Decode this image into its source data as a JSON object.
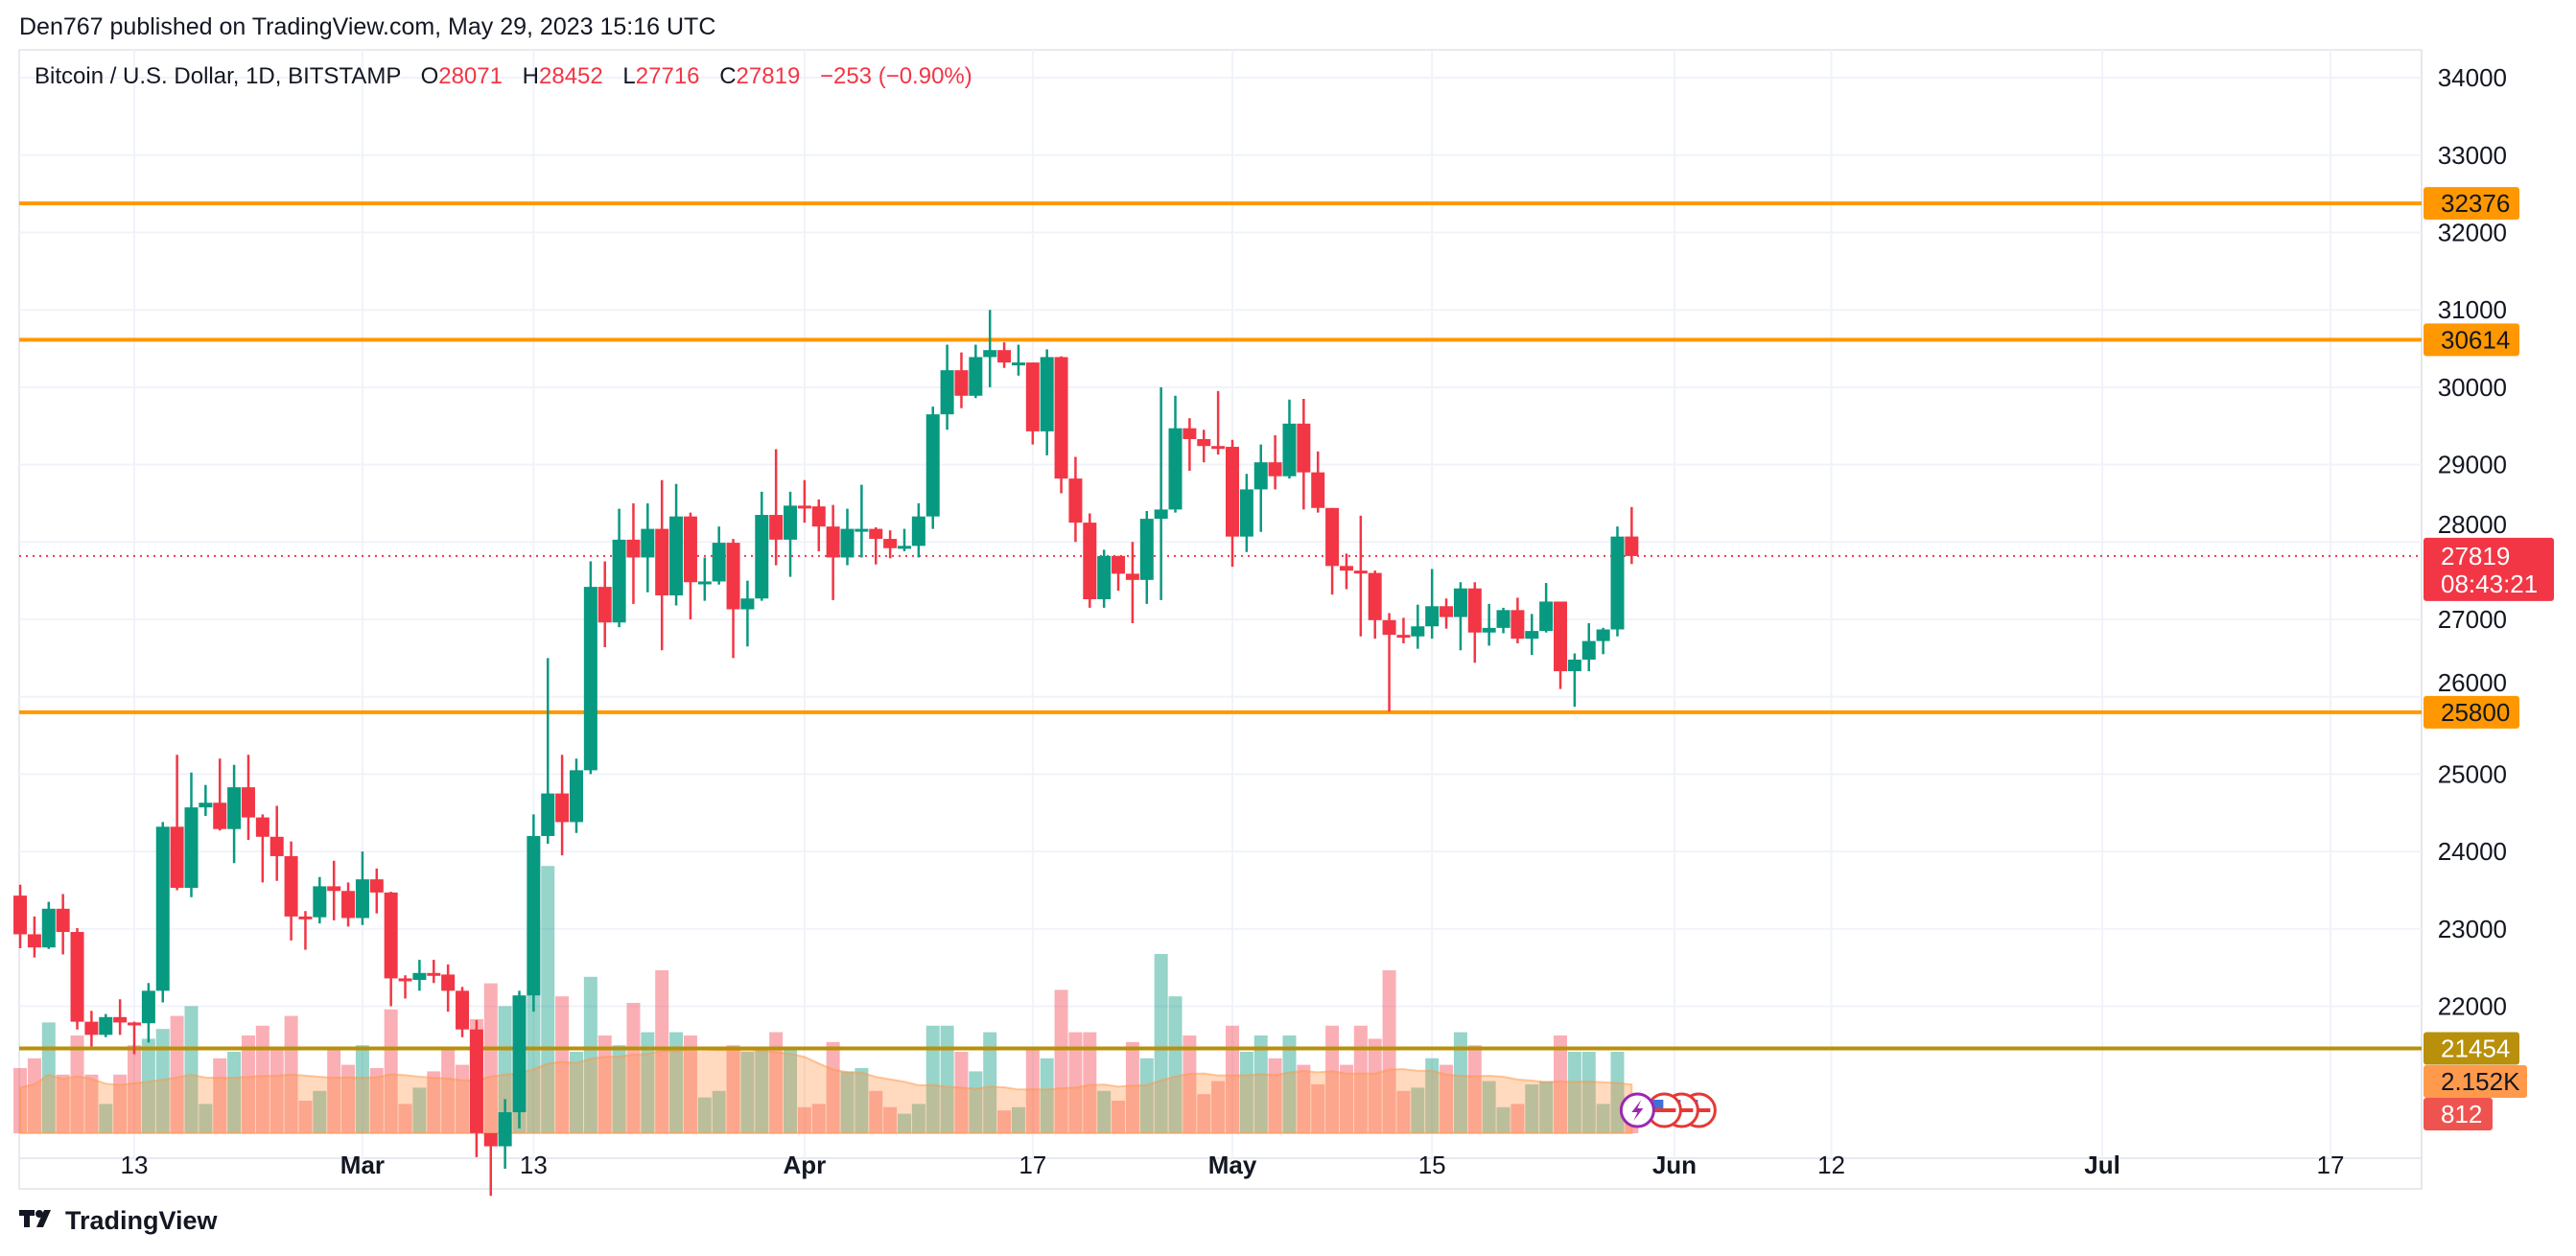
{
  "header": {
    "published": "Den767 published on TradingView.com, May 29, 2023 15:16 UTC"
  },
  "legend": {
    "symbol": "Bitcoin / U.S. Dollar, 1D, BITSTAMP",
    "o_label": "O",
    "o": "28071",
    "h_label": "H",
    "h": "28452",
    "l_label": "L",
    "l": "27716",
    "c_label": "C",
    "c": "27819",
    "change": "−253 (−0.90%)"
  },
  "footer": {
    "brand": "TradingView",
    "logo_icon": "tradingview-logo-icon"
  },
  "colors": {
    "up": "#089981",
    "down": "#f23645",
    "level_line": "#ff9800",
    "volume_level_line": "#b8900b",
    "volume_ma": "#ff9a4d",
    "last_price": "#f23645"
  },
  "chart_data": {
    "type": "candlestick",
    "title": "",
    "ylim": [
      20300,
      34500
    ],
    "grid": true,
    "yticks": [
      "22000",
      "23000",
      "24000",
      "25000",
      "26000",
      "27000",
      "28000",
      "29000",
      "30000",
      "31000",
      "32000",
      "33000",
      "34000"
    ],
    "xticks": [
      {
        "label": "13",
        "date": "2023-02-13"
      },
      {
        "label": "Mar",
        "date": "2023-03-01"
      },
      {
        "label": "13",
        "date": "2023-03-13"
      },
      {
        "label": "Apr",
        "date": "2023-04-01"
      },
      {
        "label": "17",
        "date": "2023-04-17"
      },
      {
        "label": "May",
        "date": "2023-05-01"
      },
      {
        "label": "15",
        "date": "2023-05-15"
      },
      {
        "label": "Jun",
        "date": "2023-06-01"
      },
      {
        "label": "12",
        "date": "2023-06-12"
      },
      {
        "label": "Jul",
        "date": "2023-07-01"
      },
      {
        "label": "17",
        "date": "2023-07-17"
      }
    ],
    "horizontal_levels": [
      {
        "value": 32376,
        "label": "32376",
        "kind": "level"
      },
      {
        "value": 30614,
        "label": "30614",
        "kind": "level"
      },
      {
        "value": 25800,
        "label": "25800",
        "kind": "level"
      },
      {
        "value": 21454,
        "label": "21454",
        "kind": "volume-level"
      }
    ],
    "last_price": {
      "value": 27819,
      "label": "27819",
      "countdown": "08:43:21"
    },
    "volume_labels": {
      "ma": "2.152K",
      "current": "812"
    },
    "candle_fields": [
      "date",
      "open",
      "high",
      "low",
      "close",
      "volume"
    ],
    "candles": [
      [
        "2023-02-05",
        23430,
        23570,
        22750,
        22930,
        2000
      ],
      [
        "2023-02-06",
        22930,
        23160,
        22630,
        22760,
        2300
      ],
      [
        "2023-02-07",
        22760,
        23350,
        22740,
        23260,
        3400
      ],
      [
        "2023-02-08",
        23260,
        23450,
        22670,
        22960,
        1800
      ],
      [
        "2023-02-09",
        22960,
        23010,
        21700,
        21800,
        3000
      ],
      [
        "2023-02-10",
        21800,
        21940,
        21480,
        21630,
        1800
      ],
      [
        "2023-02-11",
        21630,
        21900,
        21600,
        21860,
        900
      ],
      [
        "2023-02-12",
        21860,
        22090,
        21630,
        21790,
        1800
      ],
      [
        "2023-02-13",
        21790,
        21800,
        21380,
        21780,
        2700
      ],
      [
        "2023-02-14",
        21780,
        22300,
        21530,
        22200,
        2900
      ],
      [
        "2023-02-15",
        22200,
        24380,
        22050,
        24320,
        3200
      ],
      [
        "2023-02-16",
        24320,
        25250,
        23500,
        23530,
        3600
      ],
      [
        "2023-02-17",
        23530,
        25020,
        23410,
        24570,
        3900
      ],
      [
        "2023-02-18",
        24570,
        24860,
        24460,
        24630,
        900
      ],
      [
        "2023-02-19",
        24630,
        25200,
        24270,
        24290,
        2300
      ],
      [
        "2023-02-20",
        24290,
        25120,
        23850,
        24830,
        2500
      ],
      [
        "2023-02-21",
        24830,
        25250,
        24150,
        24440,
        3000
      ],
      [
        "2023-02-22",
        24440,
        24480,
        23600,
        24190,
        3300
      ],
      [
        "2023-02-23",
        24190,
        24590,
        23620,
        23940,
        2600
      ],
      [
        "2023-02-24",
        23940,
        24130,
        22850,
        23160,
        3600
      ],
      [
        "2023-02-25",
        23160,
        23230,
        22730,
        23150,
        1000
      ],
      [
        "2023-02-26",
        23150,
        23670,
        23070,
        23550,
        1300
      ],
      [
        "2023-02-27",
        23550,
        23880,
        23110,
        23490,
        2600
      ],
      [
        "2023-02-28",
        23490,
        23600,
        23030,
        23140,
        2100
      ],
      [
        "2023-03-01",
        23140,
        24000,
        23050,
        23640,
        2700
      ],
      [
        "2023-03-02",
        23640,
        23780,
        23200,
        23470,
        2000
      ],
      [
        "2023-03-03",
        23470,
        23480,
        22000,
        22360,
        3800
      ],
      [
        "2023-03-04",
        22360,
        22400,
        22100,
        22340,
        900
      ],
      [
        "2023-03-05",
        22340,
        22600,
        22200,
        22430,
        1400
      ],
      [
        "2023-03-06",
        22430,
        22600,
        22300,
        22410,
        1900
      ],
      [
        "2023-03-07",
        22410,
        22540,
        21930,
        22200,
        2600
      ],
      [
        "2023-03-08",
        22200,
        22250,
        21600,
        21700,
        2100
      ],
      [
        "2023-03-09",
        21700,
        21820,
        20050,
        20360,
        3500
      ],
      [
        "2023-03-10",
        20360,
        20360,
        19550,
        20190,
        4600
      ],
      [
        "2023-03-11",
        20190,
        20800,
        19900,
        20630,
        3900
      ],
      [
        "2023-03-12",
        20630,
        22200,
        20420,
        22140,
        3600
      ],
      [
        "2023-03-13",
        22140,
        24480,
        21930,
        24200,
        6600
      ],
      [
        "2023-03-14",
        24200,
        26500,
        24100,
        24750,
        8200
      ],
      [
        "2023-03-15",
        24750,
        25250,
        23950,
        24380,
        4200
      ],
      [
        "2023-03-16",
        24380,
        25200,
        24240,
        25050,
        2500
      ],
      [
        "2023-03-17",
        25050,
        27750,
        25000,
        27420,
        4800
      ],
      [
        "2023-03-18",
        27420,
        27750,
        26640,
        26960,
        3000
      ],
      [
        "2023-03-19",
        26960,
        28430,
        26900,
        28030,
        2700
      ],
      [
        "2023-03-20",
        28030,
        28500,
        27200,
        27800,
        4000
      ],
      [
        "2023-03-21",
        27800,
        28500,
        27350,
        28170,
        3100
      ],
      [
        "2023-03-22",
        28170,
        28800,
        26600,
        27310,
        5000
      ],
      [
        "2023-03-23",
        27310,
        28750,
        27180,
        28330,
        3100
      ],
      [
        "2023-03-24",
        28330,
        28380,
        27000,
        27480,
        3000
      ],
      [
        "2023-03-25",
        27480,
        27800,
        27240,
        27490,
        1100
      ],
      [
        "2023-03-26",
        27490,
        28200,
        27450,
        27990,
        1300
      ],
      [
        "2023-03-27",
        27990,
        28040,
        26500,
        27130,
        2700
      ],
      [
        "2023-03-28",
        27130,
        27500,
        26650,
        27270,
        2500
      ],
      [
        "2023-03-29",
        27270,
        28650,
        27240,
        28350,
        2600
      ],
      [
        "2023-03-30",
        28350,
        29200,
        27700,
        28030,
        3100
      ],
      [
        "2023-03-31",
        28030,
        28650,
        27550,
        28470,
        2600
      ],
      [
        "2023-04-01",
        28470,
        28800,
        28250,
        28460,
        800
      ],
      [
        "2023-04-02",
        28460,
        28550,
        27880,
        28200,
        900
      ],
      [
        "2023-04-03",
        28200,
        28480,
        27250,
        27800,
        2800
      ],
      [
        "2023-04-04",
        27800,
        28430,
        27700,
        28170,
        1900
      ],
      [
        "2023-04-05",
        28170,
        28740,
        27800,
        28170,
        2000
      ],
      [
        "2023-04-06",
        28170,
        28190,
        27710,
        28040,
        1300
      ],
      [
        "2023-04-07",
        28040,
        28150,
        27790,
        27920,
        800
      ],
      [
        "2023-04-08",
        27920,
        28170,
        27880,
        27950,
        600
      ],
      [
        "2023-04-09",
        27950,
        28500,
        27800,
        28330,
        900
      ],
      [
        "2023-04-10",
        28330,
        29750,
        28170,
        29650,
        3300
      ],
      [
        "2023-04-11",
        29650,
        30550,
        29450,
        30220,
        3300
      ],
      [
        "2023-04-12",
        30220,
        30450,
        29730,
        29890,
        2500
      ],
      [
        "2023-04-13",
        29890,
        30550,
        29860,
        30390,
        1900
      ],
      [
        "2023-04-14",
        30390,
        31000,
        30000,
        30480,
        3100
      ],
      [
        "2023-04-15",
        30480,
        30580,
        30250,
        30320,
        700
      ],
      [
        "2023-04-16",
        30320,
        30550,
        30150,
        30320,
        800
      ],
      [
        "2023-04-17",
        30320,
        30320,
        29260,
        29430,
        2600
      ],
      [
        "2023-04-18",
        29430,
        30490,
        29120,
        30390,
        2300
      ],
      [
        "2023-04-19",
        30390,
        30400,
        28630,
        28820,
        4400
      ],
      [
        "2023-04-20",
        28820,
        29100,
        28000,
        28250,
        3100
      ],
      [
        "2023-04-21",
        28250,
        28370,
        27150,
        27260,
        3100
      ],
      [
        "2023-04-22",
        27260,
        27900,
        27150,
        27820,
        1300
      ],
      [
        "2023-04-23",
        27820,
        27820,
        27370,
        27590,
        1000
      ],
      [
        "2023-04-24",
        27590,
        28000,
        26950,
        27510,
        2800
      ],
      [
        "2023-04-25",
        27510,
        28400,
        27200,
        28300,
        2300
      ],
      [
        "2023-04-26",
        28300,
        30000,
        27250,
        28420,
        5500
      ],
      [
        "2023-04-27",
        28420,
        29890,
        28380,
        29470,
        4200
      ],
      [
        "2023-04-28",
        29470,
        29600,
        28920,
        29330,
        3000
      ],
      [
        "2023-04-29",
        29330,
        29450,
        29030,
        29240,
        1200
      ],
      [
        "2023-04-30",
        29240,
        29950,
        29130,
        29230,
        1600
      ],
      [
        "2023-05-01",
        29230,
        29320,
        27680,
        28070,
        3300
      ],
      [
        "2023-05-02",
        28070,
        28880,
        27870,
        28680,
        2500
      ],
      [
        "2023-05-03",
        28680,
        29260,
        28130,
        29030,
        3000
      ],
      [
        "2023-05-04",
        29030,
        29380,
        28680,
        28850,
        2300
      ],
      [
        "2023-05-05",
        28850,
        29840,
        28820,
        29530,
        3000
      ],
      [
        "2023-05-06",
        29530,
        29850,
        28420,
        28900,
        2100
      ],
      [
        "2023-05-07",
        28900,
        29170,
        28380,
        28440,
        1500
      ],
      [
        "2023-05-08",
        28440,
        28440,
        27320,
        27690,
        3300
      ],
      [
        "2023-05-09",
        27690,
        27850,
        27390,
        27630,
        2100
      ],
      [
        "2023-05-10",
        27630,
        28340,
        26780,
        27600,
        3300
      ],
      [
        "2023-05-11",
        27600,
        27630,
        26750,
        26990,
        2900
      ],
      [
        "2023-05-12",
        26990,
        27080,
        25810,
        26800,
        5000
      ],
      [
        "2023-05-13",
        26800,
        27020,
        26690,
        26780,
        1300
      ],
      [
        "2023-05-14",
        26780,
        27190,
        26620,
        26910,
        1400
      ],
      [
        "2023-05-15",
        26910,
        27650,
        26750,
        27170,
        2300
      ],
      [
        "2023-05-16",
        27170,
        27270,
        26880,
        27030,
        2100
      ],
      [
        "2023-05-17",
        27030,
        27480,
        26600,
        27400,
        3100
      ],
      [
        "2023-05-18",
        27400,
        27480,
        26440,
        26830,
        2700
      ],
      [
        "2023-05-19",
        26830,
        27200,
        26660,
        26890,
        1600
      ],
      [
        "2023-05-20",
        26890,
        27150,
        26820,
        27120,
        800
      ],
      [
        "2023-05-21",
        27120,
        27280,
        26690,
        26750,
        900
      ],
      [
        "2023-05-22",
        26750,
        27070,
        26540,
        26850,
        1500
      ],
      [
        "2023-05-23",
        26850,
        27470,
        26830,
        27230,
        1600
      ],
      [
        "2023-05-24",
        27230,
        27230,
        26100,
        26330,
        3000
      ],
      [
        "2023-05-25",
        26330,
        26560,
        25870,
        26480,
        2500
      ],
      [
        "2023-05-26",
        26480,
        26950,
        26330,
        26720,
        2500
      ],
      [
        "2023-05-27",
        26720,
        26890,
        26550,
        26870,
        900
      ],
      [
        "2023-05-28",
        26870,
        28200,
        26780,
        28070,
        2500
      ],
      [
        "2023-05-29",
        28071,
        28452,
        27716,
        27819,
        812
      ]
    ]
  }
}
